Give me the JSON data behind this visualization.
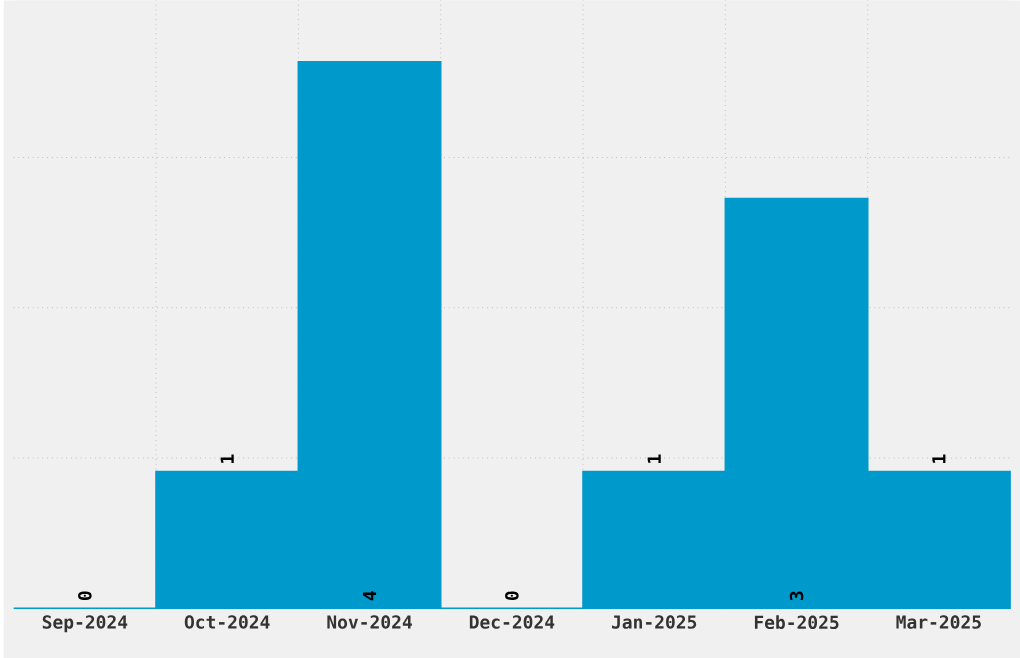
{
  "chart_data": {
    "type": "bar",
    "categories": [
      "Sep-2024",
      "Oct-2024",
      "Nov-2024",
      "Dec-2024",
      "Jan-2025",
      "Feb-2025",
      "Mar-2025"
    ],
    "values": [
      0,
      1,
      4,
      0,
      1,
      3,
      1
    ],
    "color": "#0099cc",
    "data_labels": true,
    "grid": true,
    "tick_labels": "x",
    "ylim": [
      0,
      4.45
    ],
    "yticks": [
      {
        "value": 1.1,
        "label": null
      },
      {
        "value": 2.2,
        "label": null
      },
      {
        "value": 3.3,
        "label": null
      }
    ]
  }
}
